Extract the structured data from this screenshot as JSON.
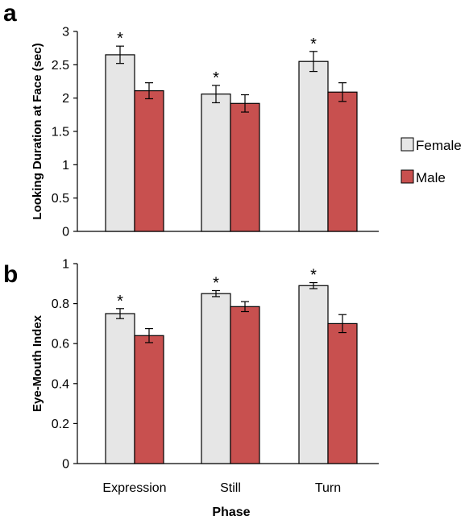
{
  "colors": {
    "female": "#e6e6e6",
    "male": "#c8504f",
    "stroke": "#000000"
  },
  "legend": {
    "female": "Female",
    "male": "Male"
  },
  "chart_data": [
    {
      "panel": "a",
      "type": "bar",
      "categories": [
        "Expression",
        "Still",
        "Turn"
      ],
      "series": [
        {
          "name": "Female",
          "values": [
            2.65,
            2.06,
            2.55
          ],
          "errors": [
            0.13,
            0.13,
            0.15
          ]
        },
        {
          "name": "Male",
          "values": [
            2.11,
            1.92,
            2.09
          ],
          "errors": [
            0.12,
            0.13,
            0.14
          ]
        }
      ],
      "significance": [
        "*",
        "*",
        "*"
      ],
      "ylabel": "Looking Duration at Face (sec)",
      "xlabel": "",
      "ylim": [
        0,
        3
      ],
      "yticks": [
        0,
        0.5,
        1,
        1.5,
        2,
        2.5,
        3
      ],
      "yticklabels": [
        "0",
        "0.5",
        "1",
        "1.5",
        "2",
        "2.5",
        "3"
      ],
      "show_category_labels": false,
      "grid": false,
      "legend_position": "right"
    },
    {
      "panel": "b",
      "type": "bar",
      "categories": [
        "Expression",
        "Still",
        "Turn"
      ],
      "series": [
        {
          "name": "Female",
          "values": [
            0.75,
            0.85,
            0.89
          ],
          "errors": [
            0.025,
            0.015,
            0.015
          ]
        },
        {
          "name": "Male",
          "values": [
            0.64,
            0.785,
            0.7
          ],
          "errors": [
            0.035,
            0.025,
            0.045
          ]
        }
      ],
      "significance": [
        "*",
        "*",
        "*"
      ],
      "ylabel": "Eye-Mouth Index",
      "xlabel": "Phase",
      "ylim": [
        0,
        1
      ],
      "yticks": [
        0,
        0.2,
        0.4,
        0.6,
        0.8,
        1
      ],
      "yticklabels": [
        "0",
        "0.2",
        "0.4",
        "0.6",
        "0.8",
        "1"
      ],
      "show_category_labels": true,
      "grid": false
    }
  ]
}
